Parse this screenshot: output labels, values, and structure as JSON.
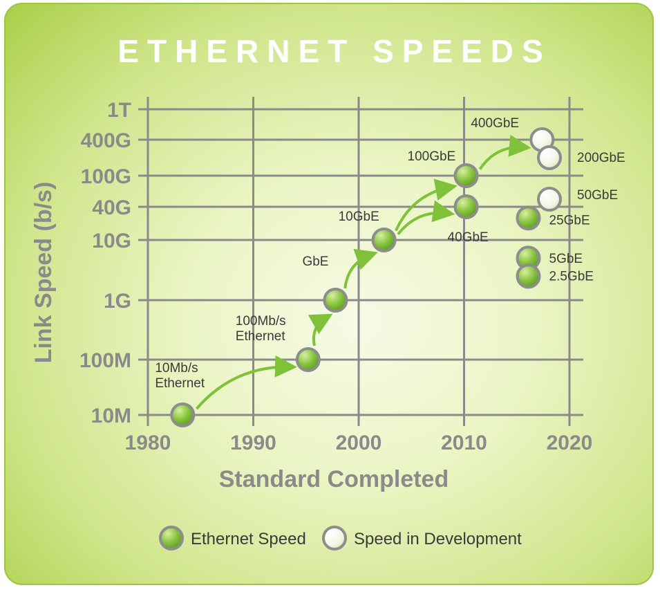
{
  "chart_data": {
    "type": "scatter",
    "title": "ETHERNET SPEEDS",
    "xlabel": "Standard Completed",
    "ylabel": "Link Speed (b/s)",
    "x_ticks": [
      "1980",
      "1990",
      "2000",
      "2010",
      "2020"
    ],
    "xlim": [
      1980,
      2021
    ],
    "y_scale": "log",
    "y_ticks": [
      {
        "label": "1T",
        "value": 1000000000000.0
      },
      {
        "label": "400G",
        "value": 400000000000.0
      },
      {
        "label": "100G",
        "value": 100000000000.0
      },
      {
        "label": "40G",
        "value": 40000000000.0
      },
      {
        "label": "10G",
        "value": 10000000000.0
      },
      {
        "label": "1G",
        "value": 1000000000.0
      },
      {
        "label": "100M",
        "value": 100000000.0
      },
      {
        "label": "10M",
        "value": 10000000.0
      }
    ],
    "grid": true,
    "legend_position": "bottom",
    "series": [
      {
        "name": "Ethernet Speed",
        "color": "#7fc23a"
      },
      {
        "name": "Speed in Development",
        "color": "#f4f8ea"
      }
    ],
    "points": [
      {
        "label": "10Mb/s\nEthernet",
        "x": 1983.3,
        "y": 10000000.0,
        "series": 0
      },
      {
        "label": "100Mb/s\nEthernet",
        "x": 1995.2,
        "y": 100000000.0,
        "series": 0
      },
      {
        "label": "GbE",
        "x": 1997.8,
        "y": 1000000000.0,
        "series": 0
      },
      {
        "label": "10GbE",
        "x": 2002.4,
        "y": 10000000000.0,
        "series": 0
      },
      {
        "label": "40GbE",
        "x": 2010.2,
        "y": 40000000000.0,
        "series": 0
      },
      {
        "label": "100GbE",
        "x": 2010.2,
        "y": 100000000000.0,
        "series": 0
      },
      {
        "label": "400GbE",
        "x": 2017.4,
        "y": 400000000000.0,
        "series": 1
      },
      {
        "label": "200GbE",
        "x": 2018.1,
        "y": 200000000000.0,
        "series": 1
      },
      {
        "label": "50GbE",
        "x": 2018.1,
        "y": 50000000000.0,
        "series": 1
      },
      {
        "label": "25GbE",
        "x": 2016.1,
        "y": 25000000000.0,
        "series": 0
      },
      {
        "label": "5GbE",
        "x": 2016.1,
        "y": 5000000000.0,
        "series": 0
      },
      {
        "label": "2.5GbE",
        "x": 2016.1,
        "y": 2500000000.0,
        "series": 0
      }
    ],
    "arrows": [
      [
        0,
        1
      ],
      [
        1,
        2
      ],
      [
        2,
        3
      ],
      [
        3,
        4
      ],
      [
        3,
        5
      ],
      [
        5,
        6
      ]
    ]
  }
}
